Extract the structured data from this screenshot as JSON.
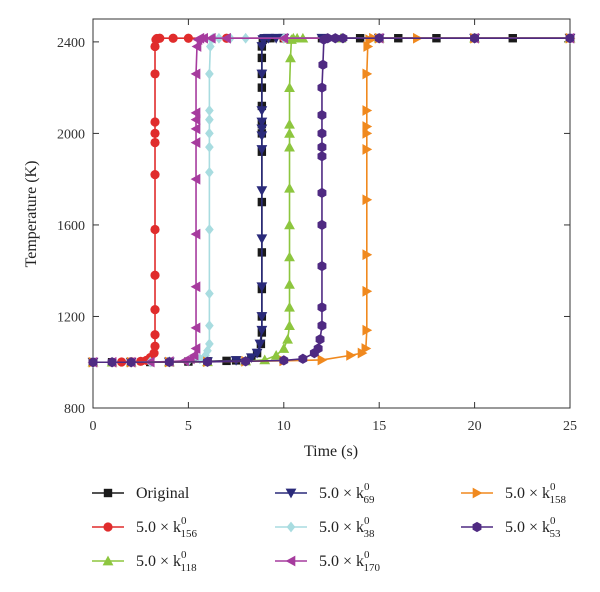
{
  "chart_data": {
    "type": "line",
    "xlabel": "Time (s)",
    "ylabel": "Temperature (K)",
    "xlim": [
      0,
      25
    ],
    "ylim": [
      800,
      2500
    ],
    "xticks": [
      0,
      5,
      10,
      15,
      20,
      25
    ],
    "yticks": [
      800,
      1200,
      1600,
      2000,
      2400
    ],
    "grid": false,
    "legend_position": "bottom",
    "series": [
      {
        "name": "Original",
        "legend_prefix": "Original",
        "legend_sub": "",
        "legend_sup": "",
        "color": "#1a1a1a",
        "marker": "square",
        "ignition": 8.9,
        "x": [
          0,
          1,
          2,
          3,
          4,
          5,
          6,
          7,
          7.5,
          8.3,
          8.6,
          8.8,
          8.85,
          8.85,
          8.85,
          8.85,
          8.85,
          8.85,
          8.85,
          8.85,
          8.85,
          8.85,
          8.85,
          8.85,
          8.85,
          8.9,
          8.95,
          9.1,
          9.3,
          10,
          12,
          14,
          16,
          18,
          20,
          22,
          25
        ],
        "y": [
          1000,
          1000,
          1000,
          1001,
          1002,
          1003,
          1004,
          1006,
          1008,
          1020,
          1040,
          1080,
          1130,
          1200,
          1320,
          1480,
          1700,
          1920,
          2000,
          2040,
          2120,
          2200,
          2260,
          2330,
          2380,
          2410,
          2415,
          2416,
          2416,
          2416,
          2416,
          2416,
          2416,
          2416,
          2416,
          2416,
          2416
        ]
      },
      {
        "name": "5.0 × k156",
        "legend_prefix": "5.0 × k",
        "legend_sub": "156",
        "legend_sup": "0",
        "color": "#e02c2c",
        "marker": "circle",
        "ignition": 3.3,
        "x": [
          0,
          1,
          1.5,
          2,
          2.5,
          2.8,
          3.0,
          3.2,
          3.25,
          3.25,
          3.25,
          3.25,
          3.25,
          3.25,
          3.25,
          3.25,
          3.25,
          3.25,
          3.25,
          3.3,
          3.35,
          3.5,
          4.2,
          5,
          7,
          10,
          15,
          20,
          25
        ],
        "y": [
          1000,
          1000,
          1001,
          1002,
          1004,
          1008,
          1020,
          1040,
          1070,
          1120,
          1230,
          1380,
          1580,
          1820,
          1960,
          2000,
          2050,
          2260,
          2380,
          2410,
          2415,
          2416,
          2416,
          2416,
          2416,
          2416,
          2416,
          2416,
          2416
        ]
      },
      {
        "name": "5.0 × k118",
        "legend_prefix": "5.0 × k",
        "legend_sub": "118",
        "legend_sup": "0",
        "color": "#8dc63f",
        "marker": "triangle-up",
        "ignition": 10.4,
        "x": [
          0,
          1,
          2,
          4,
          6,
          8,
          9,
          9.6,
          10.0,
          10.2,
          10.3,
          10.3,
          10.3,
          10.3,
          10.3,
          10.3,
          10.3,
          10.3,
          10.3,
          10.3,
          10.35,
          10.4,
          10.5,
          10.7,
          11,
          13,
          15,
          20,
          25
        ],
        "y": [
          1000,
          1000,
          1000,
          1001,
          1002,
          1005,
          1010,
          1030,
          1060,
          1100,
          1160,
          1240,
          1340,
          1460,
          1600,
          1760,
          1940,
          2000,
          2040,
          2200,
          2330,
          2410,
          2416,
          2416,
          2416,
          2416,
          2416,
          2416,
          2416
        ]
      },
      {
        "name": "5.0 × k69",
        "legend_prefix": "5.0 × k",
        "legend_sub": "69",
        "legend_sup": "0",
        "color": "#2a2a7a",
        "marker": "triangle-down",
        "ignition": 8.9,
        "x": [
          0,
          2,
          4,
          6,
          7.5,
          8.3,
          8.6,
          8.75,
          8.85,
          8.85,
          8.85,
          8.85,
          8.85,
          8.85,
          8.85,
          8.85,
          8.85,
          8.85,
          8.85,
          8.85,
          8.9,
          9.0,
          9.2,
          9.6,
          10,
          12,
          15,
          20,
          25
        ],
        "y": [
          1000,
          1000,
          1001,
          1003,
          1008,
          1020,
          1040,
          1080,
          1140,
          1200,
          1330,
          1540,
          1750,
          1930,
          1990,
          2020,
          2050,
          2100,
          2260,
          2380,
          2410,
          2415,
          2416,
          2416,
          2416,
          2416,
          2416,
          2416,
          2416
        ]
      },
      {
        "name": "5.0 × k38",
        "legend_prefix": "5.0 × k",
        "legend_sub": "38",
        "legend_sup": "0",
        "color": "#a8dce0",
        "marker": "diamond",
        "ignition": 6.2,
        "x": [
          0,
          1,
          2,
          3,
          4,
          5,
          5.6,
          5.9,
          6.0,
          6.1,
          6.1,
          6.1,
          6.1,
          6.1,
          6.1,
          6.1,
          6.1,
          6.1,
          6.1,
          6.15,
          6.2,
          6.3,
          6.6,
          7.2,
          8,
          10,
          15,
          20,
          25
        ],
        "y": [
          1000,
          1000,
          1000,
          1001,
          1003,
          1006,
          1015,
          1030,
          1050,
          1080,
          1160,
          1300,
          1580,
          1830,
          1940,
          2000,
          2060,
          2100,
          2260,
          2380,
          2410,
          2416,
          2416,
          2416,
          2416,
          2416,
          2416,
          2416,
          2416
        ]
      },
      {
        "name": "5.0 × k170",
        "legend_prefix": "5.0 × k",
        "legend_sub": "170",
        "legend_sup": "0",
        "color": "#a63b9e",
        "marker": "triangle-left",
        "ignition": 5.5,
        "x": [
          0,
          1,
          2,
          3,
          4,
          4.8,
          5.1,
          5.3,
          5.4,
          5.4,
          5.4,
          5.4,
          5.4,
          5.4,
          5.4,
          5.4,
          5.4,
          5.4,
          5.45,
          5.5,
          5.6,
          5.8,
          6.2,
          7,
          10,
          15,
          20,
          25
        ],
        "y": [
          1000,
          1000,
          1000,
          1001,
          1003,
          1006,
          1015,
          1030,
          1060,
          1150,
          1330,
          1560,
          1800,
          1960,
          2020,
          2060,
          2090,
          2260,
          2380,
          2410,
          2416,
          2416,
          2416,
          2416,
          2416,
          2416,
          2416,
          2416
        ]
      },
      {
        "name": "5.0 × k158",
        "legend_prefix": "5.0 × k",
        "legend_sub": "158",
        "legend_sup": "0",
        "color": "#f0891e",
        "marker": "triangle-right",
        "ignition": 14.4,
        "x": [
          0,
          2,
          4,
          6,
          8,
          10,
          12,
          13.5,
          14.1,
          14.3,
          14.35,
          14.35,
          14.35,
          14.35,
          14.35,
          14.35,
          14.35,
          14.35,
          14.35,
          14.4,
          14.5,
          14.7,
          15,
          17,
          20,
          25
        ],
        "y": [
          1000,
          1000,
          1001,
          1002,
          1004,
          1006,
          1010,
          1030,
          1040,
          1060,
          1140,
          1310,
          1470,
          1710,
          1930,
          2000,
          2030,
          2100,
          2260,
          2380,
          2410,
          2416,
          2416,
          2416,
          2416,
          2416
        ]
      },
      {
        "name": "5.0 × k53",
        "legend_prefix": "5.0 × k",
        "legend_sub": "53",
        "legend_sup": "0",
        "color": "#4f2a82",
        "marker": "hexagon",
        "ignition": 12.0,
        "x": [
          0,
          1,
          2,
          4,
          6,
          8,
          10,
          11,
          11.6,
          11.8,
          11.9,
          12.0,
          12.0,
          12.0,
          12.0,
          12.0,
          12.0,
          12.0,
          12.0,
          12.0,
          12.0,
          12.05,
          12.1,
          12.3,
          12.7,
          13.1,
          15,
          20,
          25
        ],
        "y": [
          1000,
          1000,
          1000,
          1001,
          1002,
          1004,
          1008,
          1015,
          1040,
          1060,
          1100,
          1160,
          1240,
          1420,
          1600,
          1740,
          1900,
          1940,
          2000,
          2080,
          2200,
          2300,
          2410,
          2416,
          2416,
          2416,
          2416,
          2416,
          2416
        ]
      }
    ]
  }
}
